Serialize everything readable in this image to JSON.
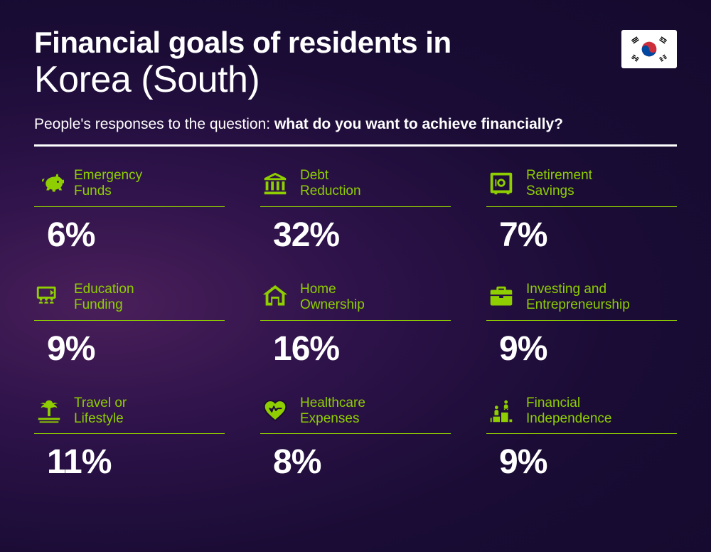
{
  "header": {
    "title_line1": "Financial goals of residents in",
    "title_line2": "Korea (South)",
    "subtitle_prefix": "People's responses to the question: ",
    "subtitle_bold": "what do you want to achieve financially?"
  },
  "accent_color": "#8fce00",
  "text_color": "#ffffff",
  "goals": [
    {
      "icon": "piggy",
      "label_l1": "Emergency",
      "label_l2": "Funds",
      "pct": "6%"
    },
    {
      "icon": "bank",
      "label_l1": "Debt",
      "label_l2": "Reduction",
      "pct": "32%"
    },
    {
      "icon": "safe",
      "label_l1": "Retirement",
      "label_l2": "Savings",
      "pct": "7%"
    },
    {
      "icon": "education",
      "label_l1": "Education",
      "label_l2": "Funding",
      "pct": "9%"
    },
    {
      "icon": "house",
      "label_l1": "Home",
      "label_l2": "Ownership",
      "pct": "16%"
    },
    {
      "icon": "briefcase",
      "label_l1": "Investing and",
      "label_l2": "Entrepreneurship",
      "pct": "9%"
    },
    {
      "icon": "palm",
      "label_l1": "Travel or",
      "label_l2": "Lifestyle",
      "pct": "11%"
    },
    {
      "icon": "heart",
      "label_l1": "Healthcare",
      "label_l2": "Expenses",
      "pct": "8%"
    },
    {
      "icon": "podium",
      "label_l1": "Financial",
      "label_l2": "Independence",
      "pct": "9%"
    }
  ]
}
